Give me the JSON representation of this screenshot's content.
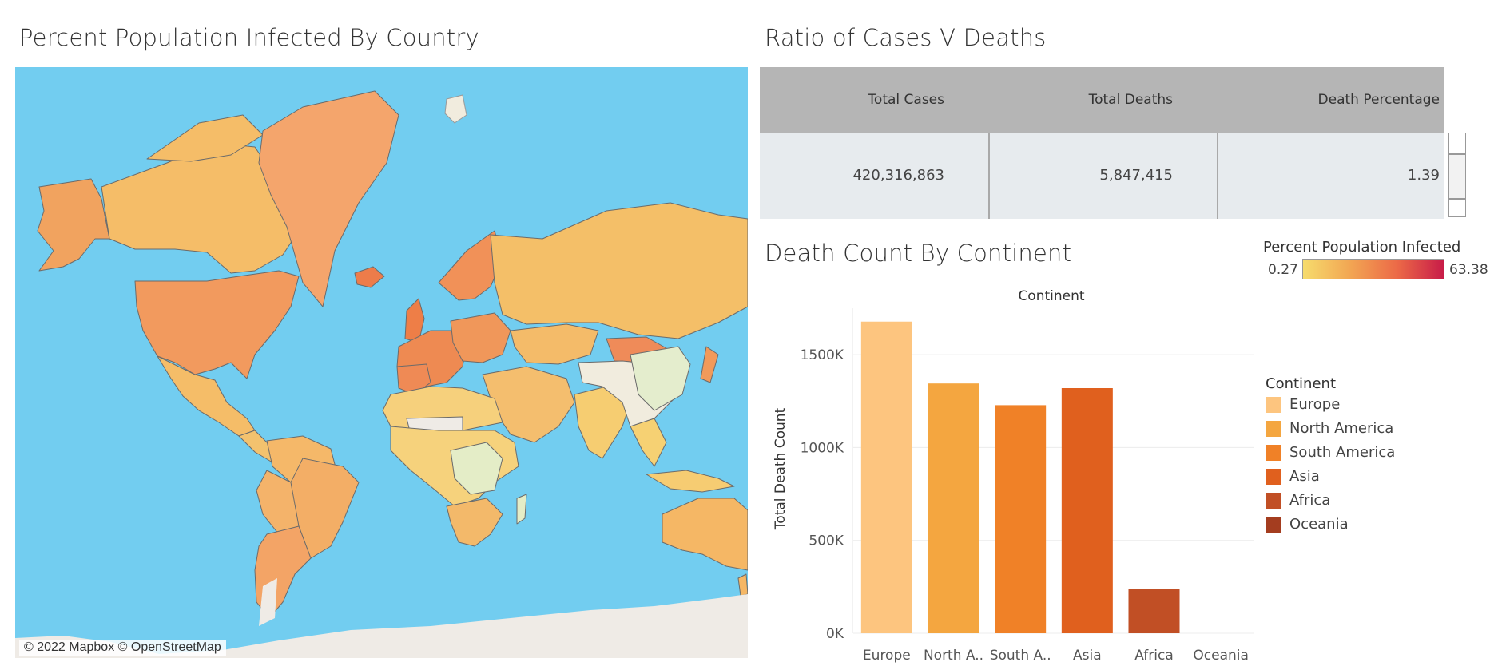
{
  "map": {
    "title": "Percent Population Infected By Country",
    "attribution": "© 2022 Mapbox © OpenStreetMap",
    "colors": {
      "ocean": "#72cdf0",
      "antarctica": "#efebe6",
      "nodata": "#efebe6"
    }
  },
  "ratio_table": {
    "title": "Ratio of  Cases V Deaths",
    "headers": [
      "Total Cases",
      "Total Deaths",
      "Death Percentage"
    ],
    "row": [
      "420,316,863",
      "5,847,415",
      "1.39"
    ],
    "colors": {
      "header": "#b5b5b5",
      "row": "#e7ebee"
    }
  },
  "infection_legend": {
    "title": "Percent Population Infected",
    "min_label": "0.27",
    "max_label": "63.38",
    "colors": [
      "#f6dc6d",
      "#f2a653",
      "#ec6a47",
      "#c81c48"
    ]
  },
  "death_chart": {
    "title": "Death Count By Continent",
    "legend_title": "Continent"
  },
  "chart_data": {
    "type": "bar",
    "title": "Continent",
    "xlabel": "",
    "ylabel": "Total Death Count",
    "categories": [
      "Europe",
      "North A..",
      "South A..",
      "Asia",
      "Africa",
      "Oceania"
    ],
    "legend": [
      "Europe",
      "North America",
      "South America",
      "Asia",
      "Africa",
      "Oceania"
    ],
    "values": [
      1678000,
      1345000,
      1228000,
      1320000,
      239000,
      0
    ],
    "colors": [
      "#fdc57f",
      "#f4a640",
      "#f08127",
      "#e0601e",
      "#c14f25",
      "#a43d1f"
    ],
    "yticks": [
      "0K",
      "500K",
      "1000K",
      "1500K"
    ],
    "ytick_values": [
      0,
      500000,
      1000000,
      1500000
    ],
    "ylim": [
      0,
      1750000
    ],
    "grid": true,
    "legend_position": "right"
  }
}
